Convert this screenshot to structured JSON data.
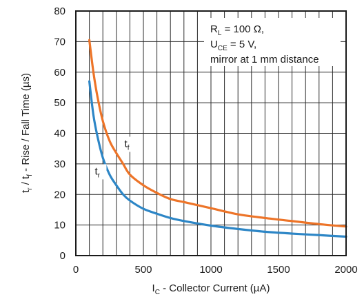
{
  "chart_data": {
    "type": "line",
    "xlim": [
      0,
      2000
    ],
    "ylim": [
      0,
      80
    ],
    "x_ticks": [
      0,
      500,
      1000,
      1500,
      2000
    ],
    "y_ticks": [
      0,
      10,
      20,
      30,
      40,
      50,
      60,
      70,
      80
    ],
    "x_grid_step": 100,
    "y_grid_step": 10,
    "grid": true,
    "xlabel": {
      "main": "I",
      "sub": "C",
      "rest": " - Collector Current (µA)"
    },
    "ylabel": {
      "p1": "t",
      "s1": "r",
      "p2": " / t",
      "s2": "f",
      "p3": " - Rise / Fall Time (µs)"
    },
    "annotation": {
      "line1": {
        "main": "R",
        "sub": "L",
        "rest": " = 100 Ω,"
      },
      "line2": {
        "main": "U",
        "sub": "CE",
        "rest": " = 5 V,"
      },
      "line3": "mirror at 1 mm distance"
    },
    "series": [
      {
        "name": "tf",
        "label_main": "t",
        "label_sub": "f",
        "color": "#ed7428",
        "label_at": [
          360,
          35.5
        ],
        "x": [
          100,
          130,
          160,
          200,
          250,
          300,
          350,
          400,
          500,
          600,
          700,
          800,
          1000,
          1200,
          1400,
          1600,
          1800,
          2000
        ],
        "y": [
          70.5,
          60,
          52,
          44,
          37.5,
          33.5,
          30,
          26.5,
          23,
          20.5,
          18.5,
          17.5,
          15.5,
          13.5,
          12.3,
          11.3,
          10.3,
          9.5
        ]
      },
      {
        "name": "tr",
        "label_main": "t",
        "label_sub": "r",
        "color": "#2d86c6",
        "label_at": [
          140,
          26.5
        ],
        "x": [
          100,
          130,
          160,
          200,
          250,
          300,
          350,
          400,
          500,
          600,
          700,
          800,
          1000,
          1200,
          1400,
          1600,
          1800,
          2000
        ],
        "y": [
          57,
          46,
          39,
          32,
          26.5,
          23,
          20,
          18,
          15.3,
          13.7,
          12.3,
          11.3,
          9.8,
          8.7,
          7.8,
          7.2,
          6.7,
          6.2
        ]
      }
    ]
  }
}
